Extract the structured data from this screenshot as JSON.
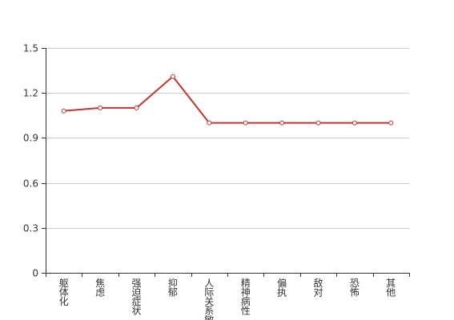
{
  "chart_data": {
    "type": "line",
    "categories": [
      "躯体化",
      "焦虑",
      "强迫症状",
      "抑郁",
      "人际关系敏感",
      "精神病性",
      "偏执",
      "敌对",
      "恐怖",
      "其他"
    ],
    "values": [
      1.08,
      1.1,
      1.1,
      1.31,
      1.0,
      1.0,
      1.0,
      1.0,
      1.0,
      1.0
    ],
    "y_ticks": [
      "0",
      "0.3",
      "0.6",
      "0.9",
      "1.2",
      "1.5"
    ],
    "ylim": [
      0,
      1.5
    ],
    "grid": "horizontal",
    "line_color": "#c23531",
    "marker_fill": "#ffffff",
    "grid_color": "#cccccc",
    "axis_color": "#333333"
  }
}
